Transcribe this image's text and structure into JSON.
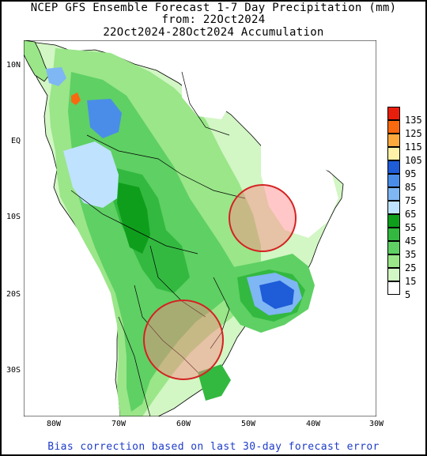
{
  "header": {
    "line1": "NCEP GFS Ensemble Forecast 1-7 Day Precipitation (mm)",
    "line2": "from: 22Oct2024",
    "line3": "22Oct2024-28Oct2024 Accumulation"
  },
  "axes": {
    "lat_labels": [
      "10N",
      "EQ",
      "10S",
      "20S",
      "30S"
    ],
    "lon_labels": [
      "80W",
      "70W",
      "60W",
      "50W",
      "40W",
      "30W"
    ]
  },
  "legend": {
    "labels": [
      "135",
      "125",
      "115",
      "105",
      "95",
      "85",
      "75",
      "65",
      "55",
      "45",
      "35",
      "25",
      "15",
      "5"
    ],
    "colors": [
      "#e81e0c",
      "#f96a10",
      "#fcaa3e",
      "#fff2a8",
      "#1e5cd8",
      "#4a8de8",
      "#7fb6f4",
      "#bfe2ff",
      "#0f9e1c",
      "#33b940",
      "#5fd064",
      "#9ae689",
      "#d2f6c4",
      "#ffffff"
    ]
  },
  "circles": [
    {
      "name": "northeast-brazil-circle",
      "center_lon": -46.5,
      "center_lat": -9.8
    },
    {
      "name": "south-paraguay-circle",
      "center_lon": -60.0,
      "center_lat": -25.5
    }
  ],
  "footer": {
    "text": "Bias correction based on last 30-day forecast error"
  }
}
